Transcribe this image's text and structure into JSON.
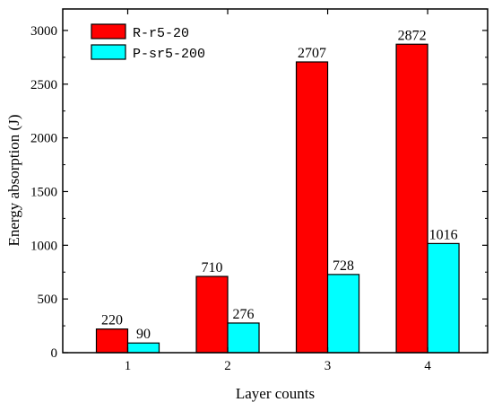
{
  "chart_data": {
    "type": "bar",
    "categories": [
      "1",
      "2",
      "3",
      "4"
    ],
    "series": [
      {
        "name": "R-r5-20",
        "values": [
          220,
          710,
          2707,
          2872
        ],
        "labels": [
          "220",
          "710",
          "2707",
          "2872"
        ],
        "color": "#ff0000"
      },
      {
        "name": "P-sr5-200",
        "values": [
          90,
          276,
          728,
          1016
        ],
        "labels": [
          "90",
          "276",
          "728",
          "1016"
        ],
        "color": "#00ffff"
      }
    ],
    "xlabel": "Layer counts",
    "ylabel": "Energy absorption (J)",
    "ylim": [
      0,
      3200
    ],
    "yticks": [
      "0",
      "500",
      "1000",
      "1500",
      "2000",
      "2500",
      "3000"
    ],
    "legend": "top-left",
    "grid": false
  }
}
